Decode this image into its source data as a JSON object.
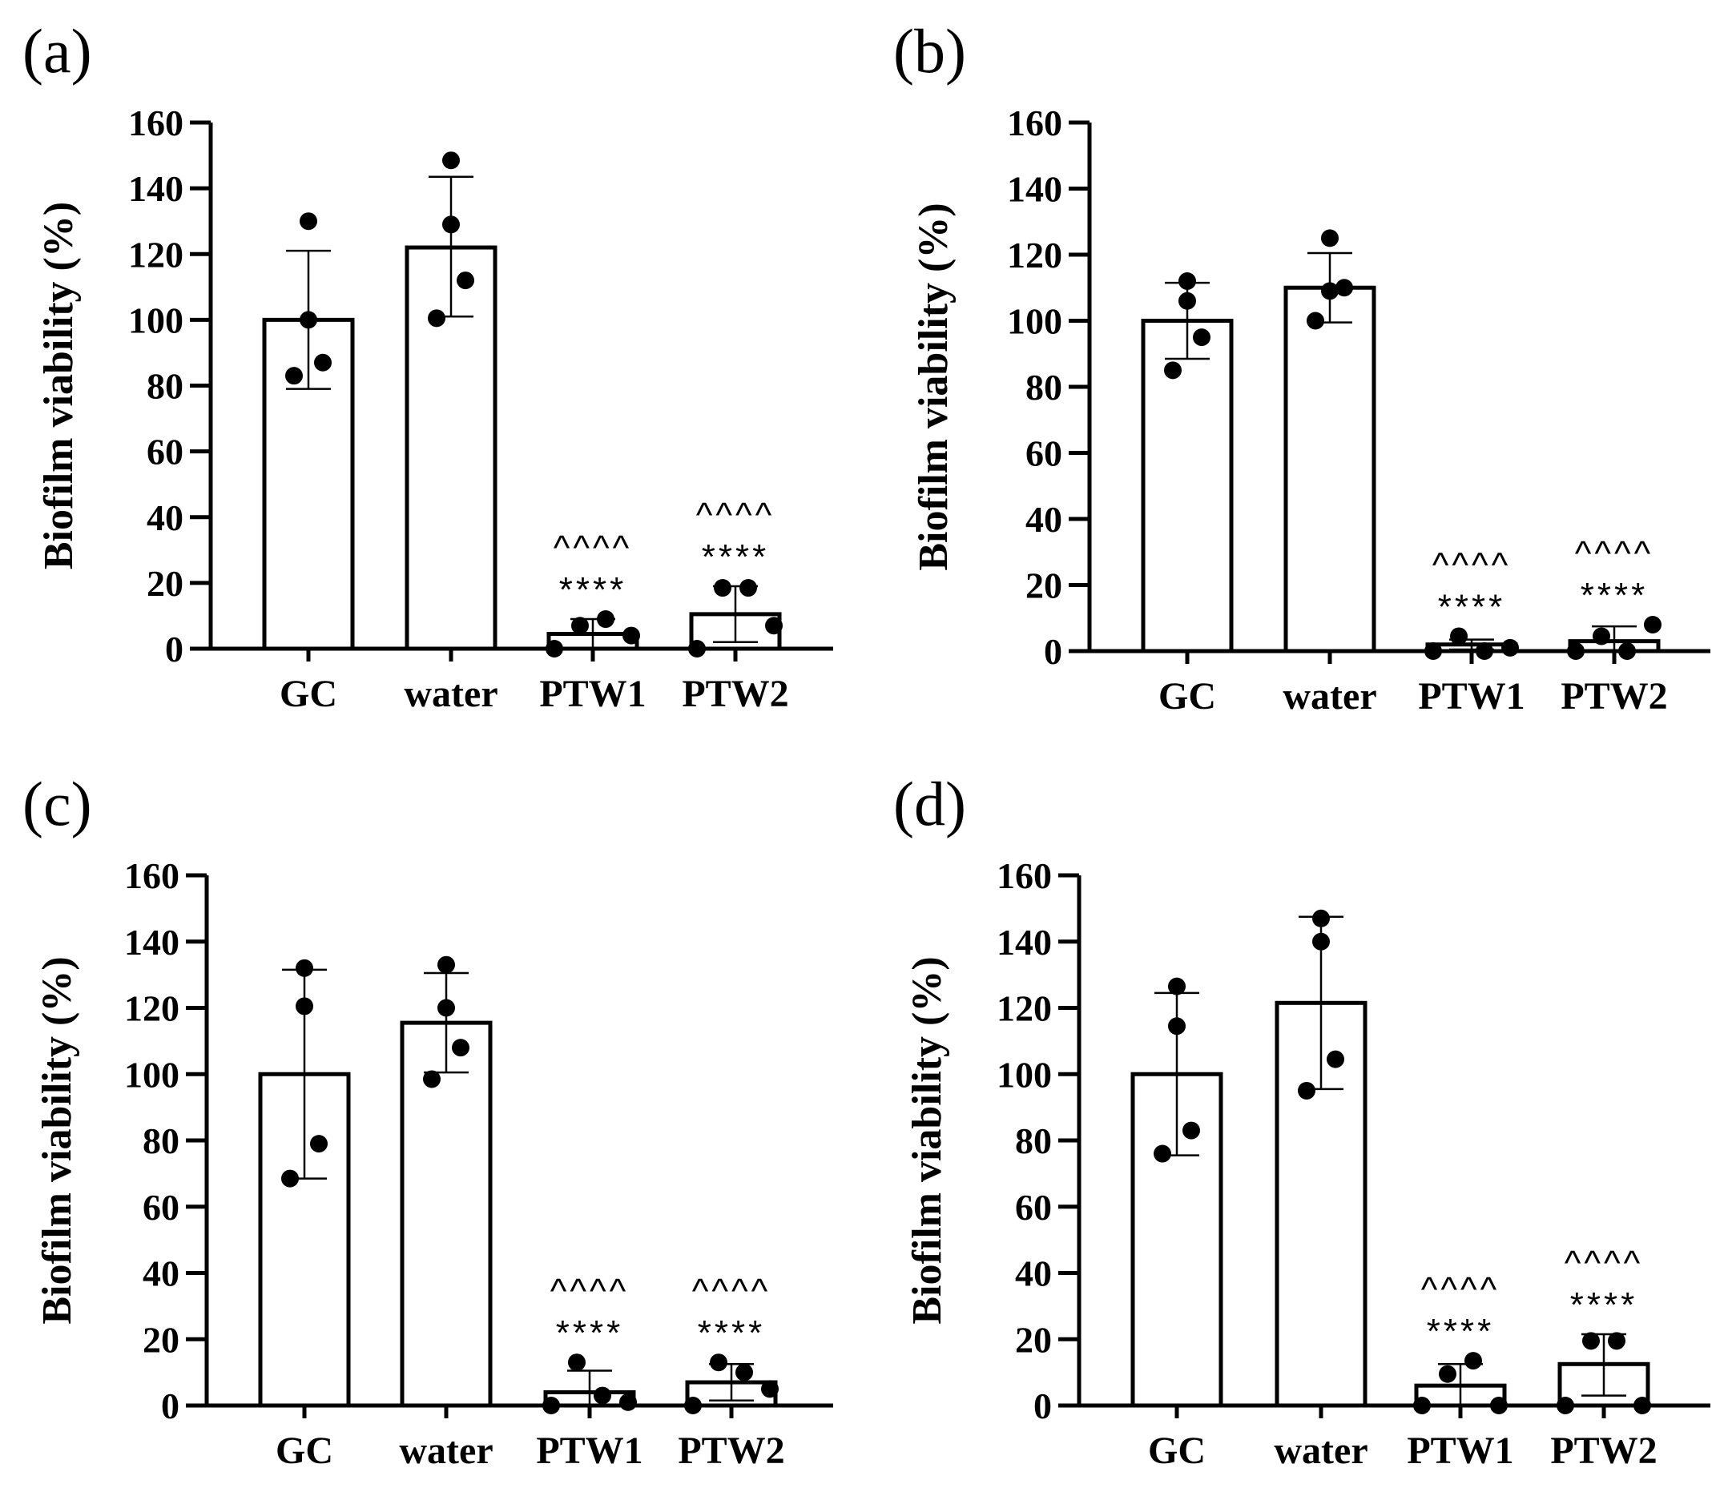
{
  "chart_data": [
    {
      "panel": "(a)",
      "type": "bar",
      "ylabel": "Biofilm viability (%)",
      "ylim": [
        0,
        160
      ],
      "yticks": [
        0,
        20,
        40,
        60,
        80,
        100,
        120,
        140,
        160
      ],
      "categories": [
        "GC",
        "water",
        "PTW1",
        "PTW2"
      ],
      "means": [
        100,
        122,
        4.5,
        10.5
      ],
      "error_upper": [
        121,
        143.5,
        9,
        19
      ],
      "error_lower": [
        79,
        101,
        0,
        2
      ],
      "points": [
        [
          130,
          100,
          87,
          83
        ],
        [
          148.5,
          129,
          112,
          100.5
        ],
        [
          0,
          7,
          9,
          4
        ],
        [
          0,
          18.5,
          18.5,
          7
        ]
      ],
      "annotations": [
        [],
        [],
        [
          "^^^^",
          "****"
        ],
        [
          "^^^^",
          "****"
        ]
      ]
    },
    {
      "panel": "(b)",
      "type": "bar",
      "ylabel": "Biofilm viability (%)",
      "ylim": [
        0,
        160
      ],
      "yticks": [
        0,
        20,
        40,
        60,
        80,
        100,
        120,
        140,
        160
      ],
      "categories": [
        "GC",
        "water",
        "PTW1",
        "PTW2"
      ],
      "means": [
        100,
        110,
        2,
        3
      ],
      "error_upper": [
        111.5,
        120.5,
        3.5,
        7.5
      ],
      "error_lower": [
        88.5,
        99.5,
        0.5,
        0
      ],
      "points": [
        [
          112,
          106,
          95,
          85
        ],
        [
          125,
          109,
          110,
          100
        ],
        [
          0,
          4.5,
          0,
          1
        ],
        [
          0,
          4.5,
          0,
          8
        ]
      ],
      "annotations": [
        [],
        [],
        [
          "^^^^",
          "****"
        ],
        [
          "^^^^",
          "****"
        ]
      ]
    },
    {
      "panel": "(c)",
      "type": "bar",
      "ylabel": "Biofilm viability (%)",
      "ylim": [
        0,
        160
      ],
      "yticks": [
        0,
        20,
        40,
        60,
        80,
        100,
        120,
        140,
        160
      ],
      "categories": [
        "GC",
        "water",
        "PTW1",
        "PTW2"
      ],
      "means": [
        100,
        115.5,
        4,
        7
      ],
      "error_upper": [
        131.5,
        130.5,
        10.5,
        12.5
      ],
      "error_lower": [
        68.5,
        100.5,
        0,
        1.5
      ],
      "points": [
        [
          132,
          120.5,
          79,
          68.5
        ],
        [
          133,
          120,
          108,
          98.5
        ],
        [
          0,
          13,
          3,
          1
        ],
        [
          0,
          13,
          10,
          5
        ]
      ],
      "annotations": [
        [],
        [],
        [
          "^^^^",
          "****"
        ],
        [
          "^^^^",
          "****"
        ]
      ]
    },
    {
      "panel": "(d)",
      "type": "bar",
      "ylabel": "Biofilm viability (%)",
      "ylim": [
        0,
        160
      ],
      "yticks": [
        0,
        20,
        40,
        60,
        80,
        100,
        120,
        140,
        160
      ],
      "categories": [
        "GC",
        "water",
        "PTW1",
        "PTW2"
      ],
      "means": [
        100,
        121.5,
        6,
        12.5
      ],
      "error_upper": [
        124.5,
        147.5,
        12.5,
        21.5
      ],
      "error_lower": [
        75.5,
        95.5,
        0,
        3
      ],
      "points": [
        [
          126.5,
          114.5,
          83,
          76
        ],
        [
          147,
          140,
          104.5,
          95
        ],
        [
          0,
          9.5,
          13.5,
          0
        ],
        [
          0,
          19.5,
          19.5,
          0
        ]
      ],
      "annotations": [
        [],
        [],
        [
          "^^^^",
          "****"
        ],
        [
          "^^^^",
          "****"
        ]
      ]
    }
  ]
}
